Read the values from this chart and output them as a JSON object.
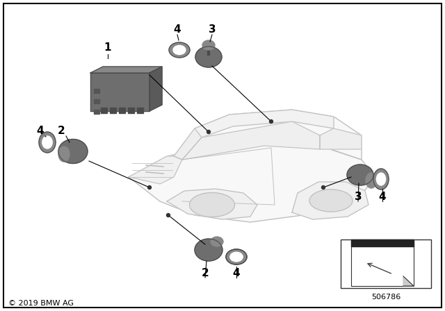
{
  "bg_color": "#ffffff",
  "border_color": "#000000",
  "car_outline": "#b0b0b0",
  "part_gray": "#7a7a7a",
  "part_dark": "#4a4a4a",
  "part_light": "#9a9a9a",
  "line_color": "#000000",
  "text_color": "#000000",
  "copyright": "© 2019 BMW AG",
  "part_number": "506786",
  "module_color": "#6e6e6e",
  "module_top": "#888888",
  "module_side": "#5a5a5a",
  "sensor_body": "#6e6e6e",
  "sensor_face": "#888888",
  "ring_color": "#888888",
  "ring_inner": "#ffffff",
  "car_fill": "#f8f8f8",
  "car_line": "#c0c0c0"
}
